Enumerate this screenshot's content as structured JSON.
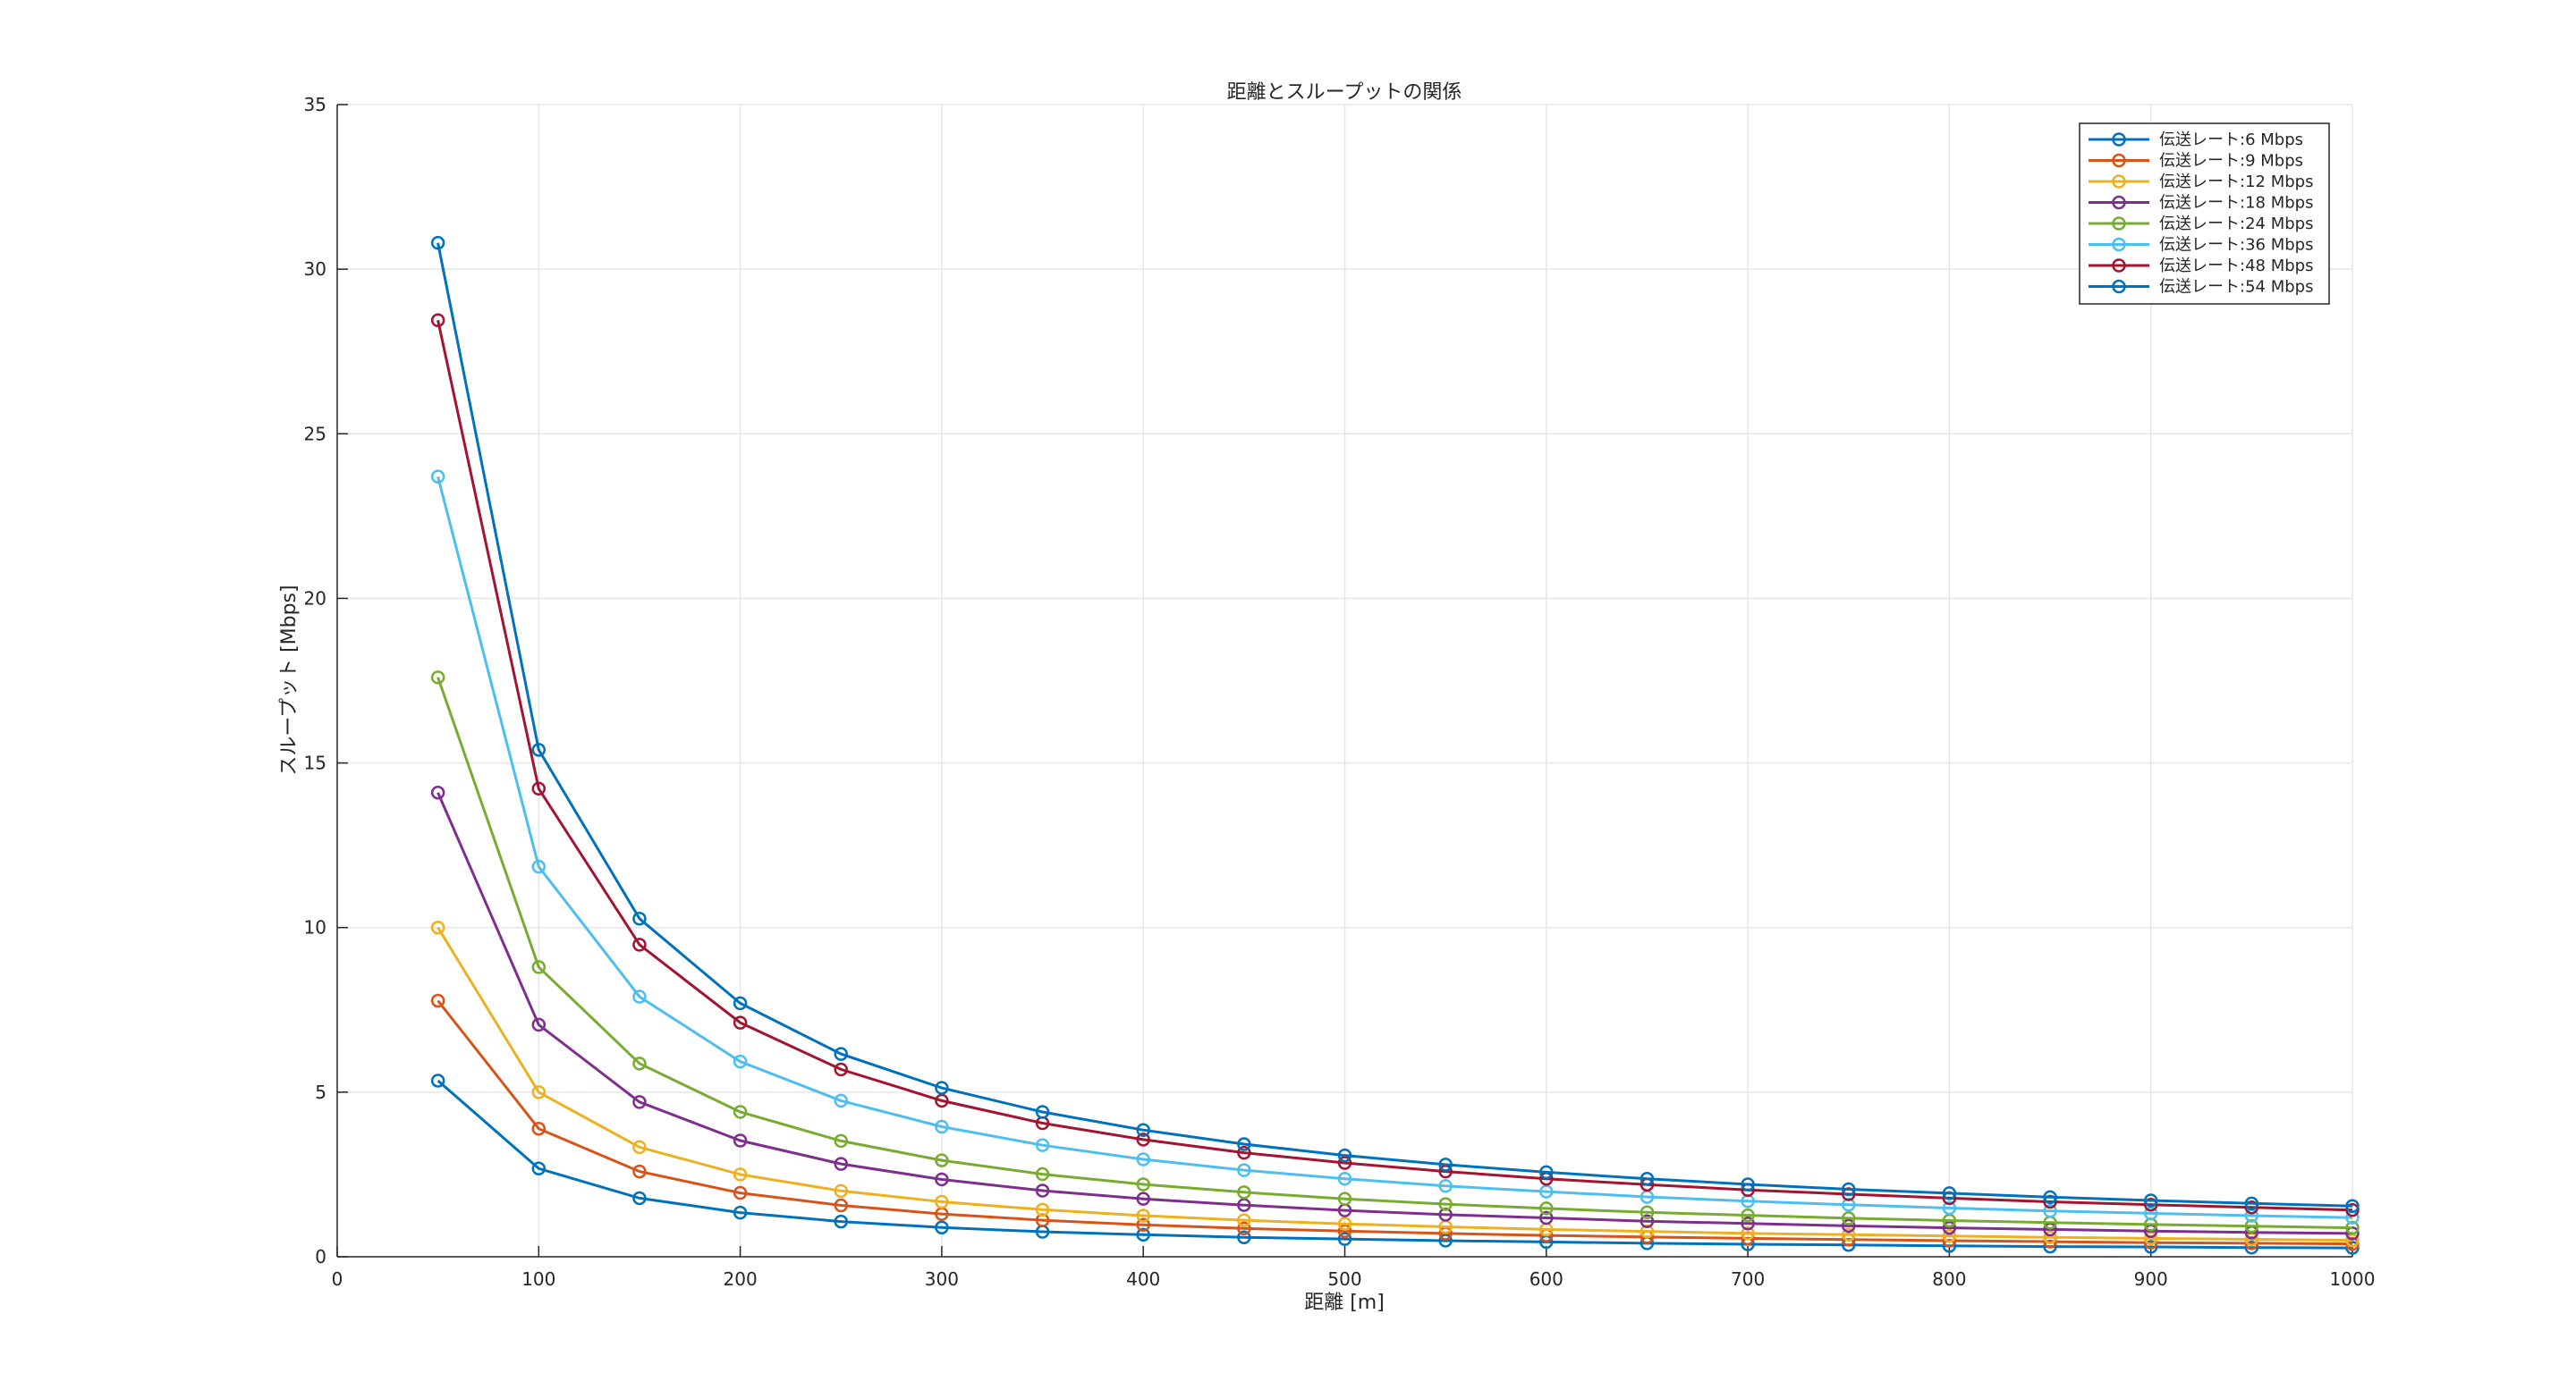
{
  "chart_data": {
    "type": "line",
    "title": "距離とスループットの関係",
    "xlabel": "距離 [m]",
    "ylabel": "スループット [Mbps]",
    "xlim": [
      0,
      1000
    ],
    "ylim": [
      0,
      35
    ],
    "x_ticks": [
      "0",
      "100",
      "200",
      "300",
      "400",
      "500",
      "600",
      "700",
      "800",
      "900",
      "1000"
    ],
    "y_ticks": [
      "0",
      "5",
      "10",
      "15",
      "20",
      "25",
      "30",
      "35"
    ],
    "grid": true,
    "legend_position": "top-right",
    "x": [
      50,
      100,
      150,
      200,
      250,
      300,
      350,
      400,
      450,
      500,
      550,
      600,
      650,
      700,
      750,
      800,
      850,
      900,
      950,
      1000
    ],
    "series": [
      {
        "name": "伝送レート:6 Mbps",
        "color": "#0072BD",
        "values": [
          5.35,
          2.68,
          1.78,
          1.34,
          1.07,
          0.89,
          0.76,
          0.67,
          0.59,
          0.54,
          0.49,
          0.45,
          0.41,
          0.38,
          0.36,
          0.33,
          0.31,
          0.3,
          0.28,
          0.27
        ]
      },
      {
        "name": "伝送レート:9 Mbps",
        "color": "#D95319",
        "values": [
          7.78,
          3.89,
          2.59,
          1.94,
          1.56,
          1.3,
          1.11,
          0.97,
          0.86,
          0.78,
          0.71,
          0.65,
          0.6,
          0.56,
          0.52,
          0.49,
          0.46,
          0.43,
          0.41,
          0.39
        ]
      },
      {
        "name": "伝送レート:12 Mbps",
        "color": "#EDB120",
        "values": [
          10.0,
          5.0,
          3.33,
          2.5,
          2.0,
          1.67,
          1.43,
          1.25,
          1.11,
          1.0,
          0.91,
          0.83,
          0.77,
          0.71,
          0.67,
          0.63,
          0.59,
          0.56,
          0.53,
          0.5
        ]
      },
      {
        "name": "伝送レート:18 Mbps",
        "color": "#7E2F8E",
        "values": [
          14.1,
          7.05,
          4.7,
          3.53,
          2.82,
          2.35,
          2.01,
          1.76,
          1.57,
          1.41,
          1.28,
          1.18,
          1.08,
          1.01,
          0.94,
          0.88,
          0.83,
          0.78,
          0.74,
          0.71
        ]
      },
      {
        "name": "伝送レート:24 Mbps",
        "color": "#77AC30",
        "values": [
          17.6,
          8.8,
          5.87,
          4.4,
          3.52,
          2.93,
          2.51,
          2.2,
          1.96,
          1.76,
          1.6,
          1.47,
          1.35,
          1.26,
          1.17,
          1.1,
          1.04,
          0.98,
          0.93,
          0.88
        ]
      },
      {
        "name": "伝送レート:36 Mbps",
        "color": "#4DBEEE",
        "values": [
          23.7,
          11.85,
          7.9,
          5.93,
          4.74,
          3.95,
          3.39,
          2.96,
          2.63,
          2.37,
          2.15,
          1.98,
          1.82,
          1.69,
          1.58,
          1.48,
          1.39,
          1.32,
          1.25,
          1.19
        ]
      },
      {
        "name": "伝送レート:48 Mbps",
        "color": "#A2142F",
        "values": [
          28.45,
          14.22,
          9.48,
          7.11,
          5.69,
          4.74,
          4.06,
          3.56,
          3.16,
          2.85,
          2.59,
          2.37,
          2.19,
          2.03,
          1.9,
          1.78,
          1.67,
          1.58,
          1.5,
          1.42
        ]
      },
      {
        "name": "伝送レート:54 Mbps",
        "color": "#0072BD",
        "values": [
          30.8,
          15.4,
          10.27,
          7.7,
          6.16,
          5.13,
          4.4,
          3.85,
          3.42,
          3.08,
          2.8,
          2.57,
          2.37,
          2.2,
          2.05,
          1.93,
          1.81,
          1.71,
          1.62,
          1.54
        ]
      }
    ]
  }
}
